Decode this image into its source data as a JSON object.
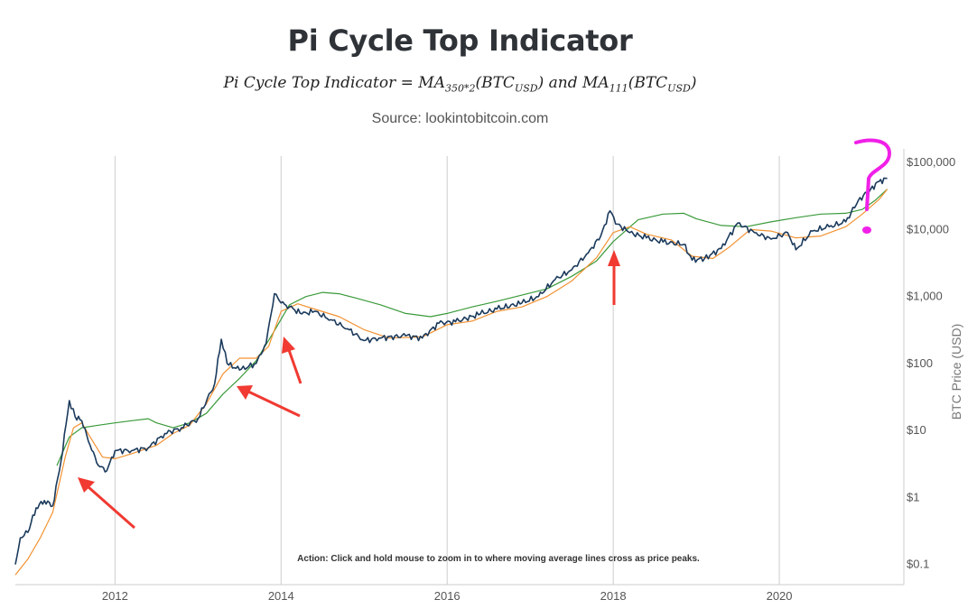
{
  "header": {
    "title": "Pi Cycle Top Indicator",
    "formula_lhs": "Pi Cycle Top Indicator = MA",
    "formula_sub1": "350*2",
    "formula_mid": "(BTC",
    "formula_sub2": "USD",
    "formula_mid2": ") and MA",
    "formula_sub3": "111",
    "formula_end": ")",
    "source": "Source: lookintobitcoin.com"
  },
  "action_note": "Action: Click and hold mouse to zoom in to where moving average lines cross as price peaks.",
  "colors": {
    "price": "#1b3a5c",
    "ma_350x2": "#3a9a3a",
    "ma_111": "#f39232",
    "annotation_arrow": "#f03a32",
    "annotation_question": "#f020e8",
    "grid": "#cccccc"
  },
  "chart_data": {
    "type": "line",
    "title": "Pi Cycle Top Indicator",
    "ylabel": "BTC Price (USD)",
    "xlabel": "",
    "y_scale": "log",
    "ylim": [
      0.05,
      160000
    ],
    "xlim": [
      2010.8,
      2021.5
    ],
    "grid": "vertical lines only",
    "x_ticks": [
      {
        "value": 2012,
        "label": "2012"
      },
      {
        "value": 2014,
        "label": "2014"
      },
      {
        "value": 2016,
        "label": "2016"
      },
      {
        "value": 2018,
        "label": "2018"
      },
      {
        "value": 2020,
        "label": "2020"
      }
    ],
    "y_ticks": [
      {
        "value": 0.1,
        "label": "$0.1"
      },
      {
        "value": 1,
        "label": "$1"
      },
      {
        "value": 10,
        "label": "$10"
      },
      {
        "value": 100,
        "label": "$100"
      },
      {
        "value": 1000,
        "label": "$1,000"
      },
      {
        "value": 10000,
        "label": "$10,000"
      },
      {
        "value": 100000,
        "label": "$100,000"
      }
    ],
    "series": [
      {
        "key": "price",
        "points": [
          [
            2010.8,
            0.1
          ],
          [
            2010.86,
            0.25
          ],
          [
            2010.95,
            0.3
          ],
          [
            2011.05,
            0.7
          ],
          [
            2011.15,
            0.9
          ],
          [
            2011.25,
            0.75
          ],
          [
            2011.35,
            3.5
          ],
          [
            2011.45,
            28
          ],
          [
            2011.52,
            16
          ],
          [
            2011.6,
            14
          ],
          [
            2011.7,
            6
          ],
          [
            2011.8,
            3
          ],
          [
            2011.9,
            2.5
          ],
          [
            2012.0,
            5
          ],
          [
            2012.2,
            5
          ],
          [
            2012.4,
            5.5
          ],
          [
            2012.6,
            9
          ],
          [
            2012.8,
            11
          ],
          [
            2013.0,
            15
          ],
          [
            2013.2,
            50
          ],
          [
            2013.28,
            230
          ],
          [
            2013.35,
            100
          ],
          [
            2013.5,
            80
          ],
          [
            2013.7,
            100
          ],
          [
            2013.82,
            200
          ],
          [
            2013.92,
            1100
          ],
          [
            2014.0,
            800
          ],
          [
            2014.1,
            700
          ],
          [
            2014.25,
            550
          ],
          [
            2014.4,
            600
          ],
          [
            2014.6,
            450
          ],
          [
            2014.8,
            330
          ],
          [
            2015.0,
            220
          ],
          [
            2015.2,
            240
          ],
          [
            2015.5,
            260
          ],
          [
            2015.7,
            240
          ],
          [
            2015.9,
            400
          ],
          [
            2016.1,
            420
          ],
          [
            2016.4,
            550
          ],
          [
            2016.6,
            650
          ],
          [
            2016.9,
            800
          ],
          [
            2017.1,
            1000
          ],
          [
            2017.3,
            1800
          ],
          [
            2017.5,
            2500
          ],
          [
            2017.7,
            4500
          ],
          [
            2017.85,
            8000
          ],
          [
            2017.96,
            19000
          ],
          [
            2018.05,
            12000
          ],
          [
            2018.2,
            9000
          ],
          [
            2018.4,
            7500
          ],
          [
            2018.6,
            6500
          ],
          [
            2018.85,
            6000
          ],
          [
            2018.95,
            3500
          ],
          [
            2019.1,
            3700
          ],
          [
            2019.3,
            5200
          ],
          [
            2019.5,
            12500
          ],
          [
            2019.7,
            9000
          ],
          [
            2019.9,
            7200
          ],
          [
            2020.1,
            9000
          ],
          [
            2020.2,
            5000
          ],
          [
            2020.4,
            9500
          ],
          [
            2020.6,
            11000
          ],
          [
            2020.8,
            13000
          ],
          [
            2020.95,
            27000
          ],
          [
            2021.1,
            40000
          ],
          [
            2021.2,
            52000
          ],
          [
            2021.3,
            58000
          ]
        ]
      },
      {
        "key": "ma_350x2",
        "points": [
          [
            2011.3,
            3
          ],
          [
            2011.45,
            8
          ],
          [
            2011.6,
            11
          ],
          [
            2011.8,
            12
          ],
          [
            2012.0,
            13
          ],
          [
            2012.2,
            14
          ],
          [
            2012.4,
            15
          ],
          [
            2012.5,
            13
          ],
          [
            2012.7,
            11
          ],
          [
            2012.9,
            13
          ],
          [
            2013.1,
            18
          ],
          [
            2013.3,
            35
          ],
          [
            2013.5,
            60
          ],
          [
            2013.7,
            110
          ],
          [
            2013.9,
            280
          ],
          [
            2014.1,
            750
          ],
          [
            2014.3,
            1000
          ],
          [
            2014.5,
            1150
          ],
          [
            2014.7,
            1100
          ],
          [
            2014.9,
            950
          ],
          [
            2015.2,
            750
          ],
          [
            2015.5,
            560
          ],
          [
            2015.8,
            500
          ],
          [
            2016.0,
            560
          ],
          [
            2016.3,
            700
          ],
          [
            2016.6,
            850
          ],
          [
            2016.9,
            1050
          ],
          [
            2017.2,
            1300
          ],
          [
            2017.5,
            2000
          ],
          [
            2017.8,
            3400
          ],
          [
            2018.0,
            6600
          ],
          [
            2018.3,
            14000
          ],
          [
            2018.6,
            17000
          ],
          [
            2018.85,
            17500
          ],
          [
            2019.0,
            14500
          ],
          [
            2019.3,
            11500
          ],
          [
            2019.6,
            11000
          ],
          [
            2019.9,
            13000
          ],
          [
            2020.2,
            15000
          ],
          [
            2020.5,
            17000
          ],
          [
            2020.8,
            17500
          ],
          [
            2021.0,
            20000
          ],
          [
            2021.15,
            27000
          ],
          [
            2021.3,
            40000
          ]
        ]
      },
      {
        "key": "ma_111",
        "points": [
          [
            2010.8,
            0.07
          ],
          [
            2010.95,
            0.12
          ],
          [
            2011.1,
            0.25
          ],
          [
            2011.25,
            0.6
          ],
          [
            2011.4,
            4
          ],
          [
            2011.5,
            11
          ],
          [
            2011.6,
            13
          ],
          [
            2011.7,
            8
          ],
          [
            2011.85,
            4
          ],
          [
            2012.0,
            3.8
          ],
          [
            2012.2,
            4.5
          ],
          [
            2012.5,
            6
          ],
          [
            2012.7,
            9
          ],
          [
            2012.9,
            12
          ],
          [
            2013.1,
            25
          ],
          [
            2013.3,
            70
          ],
          [
            2013.5,
            120
          ],
          [
            2013.7,
            120
          ],
          [
            2013.85,
            180
          ],
          [
            2014.0,
            600
          ],
          [
            2014.2,
            780
          ],
          [
            2014.4,
            650
          ],
          [
            2014.7,
            500
          ],
          [
            2015.0,
            320
          ],
          [
            2015.3,
            240
          ],
          [
            2015.7,
            250
          ],
          [
            2016.0,
            380
          ],
          [
            2016.3,
            430
          ],
          [
            2016.6,
            600
          ],
          [
            2016.9,
            700
          ],
          [
            2017.2,
            1000
          ],
          [
            2017.5,
            1700
          ],
          [
            2017.8,
            3800
          ],
          [
            2018.0,
            9000
          ],
          [
            2018.2,
            11000
          ],
          [
            2018.4,
            8500
          ],
          [
            2018.7,
            7000
          ],
          [
            2018.95,
            4000
          ],
          [
            2019.2,
            3700
          ],
          [
            2019.4,
            5500
          ],
          [
            2019.65,
            10000
          ],
          [
            2019.9,
            9500
          ],
          [
            2020.2,
            7500
          ],
          [
            2020.5,
            8000
          ],
          [
            2020.8,
            11000
          ],
          [
            2021.0,
            17000
          ],
          [
            2021.2,
            28000
          ],
          [
            2021.3,
            40000
          ]
        ]
      }
    ]
  }
}
